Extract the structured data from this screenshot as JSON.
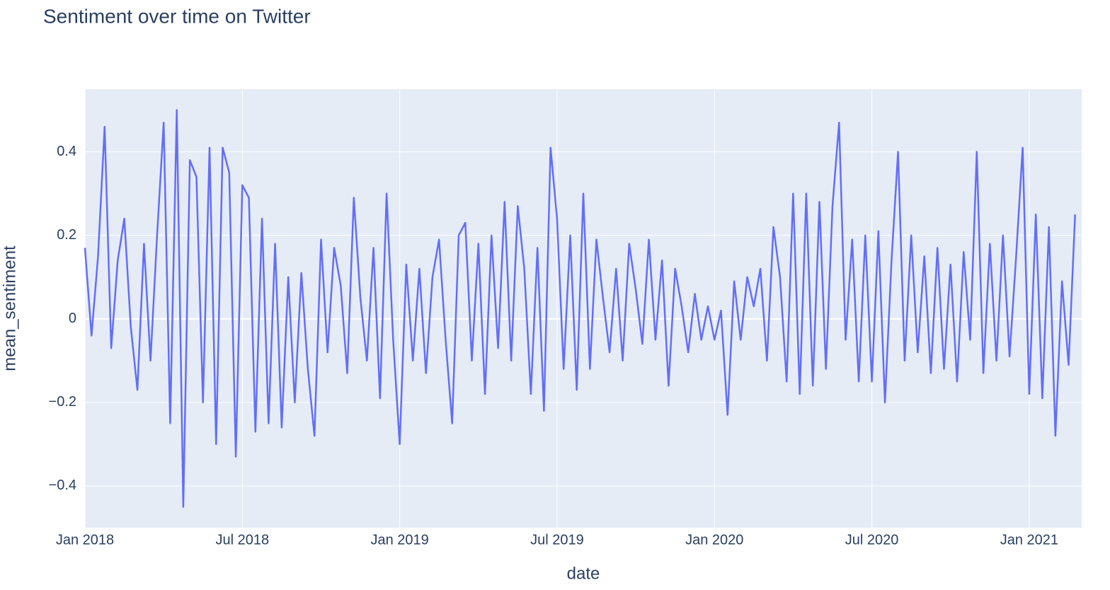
{
  "chart_data": {
    "type": "line",
    "title": "Sentiment over time on Twitter",
    "x_label": "date",
    "y_label": "mean_sentiment",
    "color": "#636efa",
    "grid": true,
    "x": [
      "2018-01",
      "2018-01",
      "2018-01",
      "2018-01",
      "2018-02",
      "2018-02",
      "2018-02",
      "2018-02",
      "2018-03",
      "2018-03",
      "2018-03",
      "2018-03",
      "2018-04",
      "2018-04",
      "2018-04",
      "2018-04",
      "2018-05",
      "2018-05",
      "2018-05",
      "2018-05",
      "2018-06",
      "2018-06",
      "2018-06",
      "2018-06",
      "2018-07",
      "2018-07",
      "2018-07",
      "2018-07",
      "2018-08",
      "2018-08",
      "2018-08",
      "2018-08",
      "2018-09",
      "2018-09",
      "2018-09",
      "2018-09",
      "2018-10",
      "2018-10",
      "2018-10",
      "2018-10",
      "2018-11",
      "2018-11",
      "2018-11",
      "2018-11",
      "2018-12",
      "2018-12",
      "2018-12",
      "2018-12",
      "2019-01",
      "2019-01",
      "2019-01",
      "2019-01",
      "2019-02",
      "2019-02",
      "2019-02",
      "2019-02",
      "2019-03",
      "2019-03",
      "2019-03",
      "2019-03",
      "2019-04",
      "2019-04",
      "2019-04",
      "2019-04",
      "2019-05",
      "2019-05",
      "2019-05",
      "2019-05",
      "2019-06",
      "2019-06",
      "2019-06",
      "2019-06",
      "2019-07",
      "2019-07",
      "2019-07",
      "2019-07",
      "2019-08",
      "2019-08",
      "2019-08",
      "2019-08",
      "2019-09",
      "2019-09",
      "2019-09",
      "2019-09",
      "2019-10",
      "2019-10",
      "2019-10",
      "2019-10",
      "2019-11",
      "2019-11",
      "2019-11",
      "2019-11",
      "2019-12",
      "2019-12",
      "2019-12",
      "2019-12",
      "2020-01",
      "2020-01",
      "2020-01",
      "2020-01",
      "2020-02",
      "2020-02",
      "2020-02",
      "2020-02",
      "2020-03",
      "2020-03",
      "2020-03",
      "2020-03",
      "2020-04",
      "2020-04",
      "2020-04",
      "2020-04",
      "2020-05",
      "2020-05",
      "2020-05",
      "2020-05",
      "2020-06",
      "2020-06",
      "2020-06",
      "2020-06",
      "2020-07",
      "2020-07",
      "2020-07",
      "2020-07",
      "2020-08",
      "2020-08",
      "2020-08",
      "2020-08",
      "2020-09",
      "2020-09",
      "2020-09",
      "2020-09",
      "2020-10",
      "2020-10",
      "2020-10",
      "2020-10",
      "2020-11",
      "2020-11",
      "2020-11",
      "2020-11",
      "2020-12",
      "2020-12",
      "2020-12",
      "2020-12",
      "2021-01",
      "2021-01",
      "2021-01",
      "2021-01",
      "2021-02",
      "2021-02",
      "2021-02",
      "2021-02"
    ],
    "values": [
      0.17,
      -0.04,
      0.15,
      0.46,
      -0.07,
      0.14,
      0.24,
      -0.02,
      -0.17,
      0.18,
      -0.1,
      0.2,
      0.47,
      -0.25,
      0.5,
      -0.45,
      0.38,
      0.34,
      -0.2,
      0.41,
      -0.3,
      0.41,
      0.35,
      -0.33,
      0.32,
      0.29,
      -0.27,
      0.24,
      -0.25,
      0.18,
      -0.26,
      0.1,
      -0.2,
      0.11,
      -0.12,
      -0.28,
      0.19,
      -0.08,
      0.17,
      0.08,
      -0.13,
      0.29,
      0.05,
      -0.1,
      0.17,
      -0.19,
      0.3,
      -0.05,
      -0.3,
      0.13,
      -0.1,
      0.12,
      -0.13,
      0.1,
      0.19,
      -0.05,
      -0.25,
      0.2,
      0.23,
      -0.1,
      0.18,
      -0.18,
      0.2,
      -0.07,
      0.28,
      -0.1,
      0.27,
      0.12,
      -0.18,
      0.17,
      -0.22,
      0.41,
      0.24,
      -0.12,
      0.2,
      -0.17,
      0.3,
      -0.12,
      0.19,
      0.05,
      -0.08,
      0.12,
      -0.1,
      0.18,
      0.07,
      -0.06,
      0.19,
      -0.05,
      0.14,
      -0.16,
      0.12,
      0.03,
      -0.08,
      0.06,
      -0.05,
      0.03,
      -0.05,
      0.02,
      -0.23,
      0.09,
      -0.05,
      0.1,
      0.03,
      0.12,
      -0.1,
      0.22,
      0.1,
      -0.15,
      0.3,
      -0.18,
      0.3,
      -0.16,
      0.28,
      -0.12,
      0.27,
      0.47,
      -0.05,
      0.19,
      -0.15,
      0.2,
      -0.15,
      0.21,
      -0.2,
      0.14,
      0.4,
      -0.1,
      0.2,
      -0.08,
      0.15,
      -0.13,
      0.17,
      -0.12,
      0.13,
      -0.15,
      0.16,
      -0.05,
      0.4,
      -0.13,
      0.18,
      -0.1,
      0.2,
      -0.09,
      0.15,
      0.41,
      -0.18,
      0.25,
      -0.19,
      0.22,
      -0.28,
      0.09,
      -0.11,
      0.25
    ],
    "xlim": [
      "2018-01",
      "2021-03"
    ],
    "xticks": [
      {
        "value": "2018-01",
        "label": "Jan 2018"
      },
      {
        "value": "2018-07",
        "label": "Jul 2018"
      },
      {
        "value": "2019-01",
        "label": "Jan 2019"
      },
      {
        "value": "2019-07",
        "label": "Jul 2019"
      },
      {
        "value": "2020-01",
        "label": "Jan 2020"
      },
      {
        "value": "2020-07",
        "label": "Jul 2020"
      },
      {
        "value": "2021-01",
        "label": "Jan 2021"
      }
    ],
    "ylim": [
      -0.5,
      0.55
    ],
    "yticks": [
      {
        "value": -0.4,
        "label": "−0.4"
      },
      {
        "value": -0.2,
        "label": "−0.2"
      },
      0,
      0.2,
      0.4
    ]
  }
}
